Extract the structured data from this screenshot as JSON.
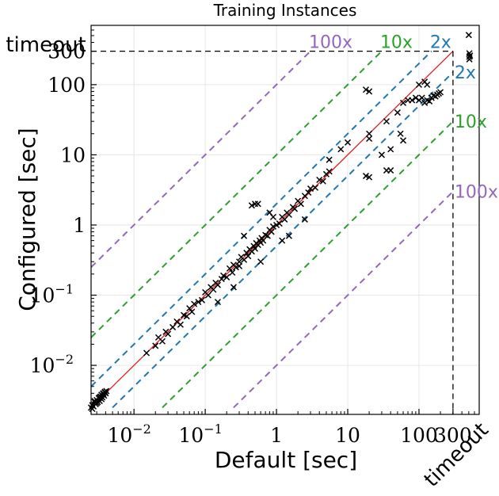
{
  "chart_data": {
    "type": "scatter",
    "title": "Training Instances",
    "xlabel": "Default [sec]",
    "ylabel": "Configured [sec]",
    "scale": "log",
    "xlim": [
      0.0025,
      700
    ],
    "ylim": [
      0.002,
      700
    ],
    "timeout_label": "timeout",
    "timeout_value": 300,
    "x_ticks": [
      {
        "value": 0.01,
        "label": "10",
        "exp": "−2"
      },
      {
        "value": 0.1,
        "label": "10",
        "exp": "−1"
      },
      {
        "value": 1,
        "label": "1",
        "exp": ""
      },
      {
        "value": 10,
        "label": "10",
        "exp": ""
      },
      {
        "value": 100,
        "label": "100",
        "exp": ""
      },
      {
        "value": 300,
        "label": "300",
        "exp": ""
      }
    ],
    "y_ticks": [
      {
        "value": 0.01,
        "label": "10",
        "exp": "−2"
      },
      {
        "value": 0.1,
        "label": "10",
        "exp": "−1"
      },
      {
        "value": 1,
        "label": "1",
        "exp": ""
      },
      {
        "value": 10,
        "label": "10",
        "exp": ""
      },
      {
        "value": 100,
        "label": "100",
        "exp": ""
      },
      {
        "value": 300,
        "label": "300",
        "exp": ""
      }
    ],
    "reference_lines": [
      {
        "factor": 2,
        "label": "2x",
        "color": "#1f77b4"
      },
      {
        "factor": 10,
        "label": "10x",
        "color": "#2ca02c"
      },
      {
        "factor": 100,
        "label": "100x",
        "color": "#9467bd"
      }
    ],
    "diagonal_color": "#e41a1c",
    "grid": true,
    "points": [
      [
        0.0025,
        0.0025
      ],
      [
        0.0026,
        0.0027
      ],
      [
        0.0027,
        0.0026
      ],
      [
        0.0028,
        0.003
      ],
      [
        0.0029,
        0.0028
      ],
      [
        0.003,
        0.0032
      ],
      [
        0.0031,
        0.003
      ],
      [
        0.0032,
        0.0034
      ],
      [
        0.0033,
        0.0031
      ],
      [
        0.0034,
        0.0036
      ],
      [
        0.0035,
        0.0038
      ],
      [
        0.0036,
        0.0035
      ],
      [
        0.0037,
        0.004
      ],
      [
        0.0038,
        0.0037
      ],
      [
        0.0039,
        0.0042
      ],
      [
        0.004,
        0.004
      ],
      [
        0.0026,
        0.0024
      ],
      [
        0.0028,
        0.0031
      ],
      [
        0.003,
        0.0029
      ],
      [
        0.0033,
        0.0035
      ],
      [
        0.0035,
        0.0033
      ],
      [
        0.0037,
        0.0039
      ],
      [
        0.0039,
        0.0041
      ],
      [
        0.0041,
        0.0043
      ],
      [
        0.015,
        0.015
      ],
      [
        0.02,
        0.019
      ],
      [
        0.022,
        0.025
      ],
      [
        0.025,
        0.022
      ],
      [
        0.028,
        0.03
      ],
      [
        0.03,
        0.028
      ],
      [
        0.035,
        0.035
      ],
      [
        0.04,
        0.042
      ],
      [
        0.045,
        0.038
      ],
      [
        0.05,
        0.052
      ],
      [
        0.055,
        0.05
      ],
      [
        0.06,
        0.065
      ],
      [
        0.065,
        0.058
      ],
      [
        0.07,
        0.075
      ],
      [
        0.08,
        0.08
      ],
      [
        0.09,
        0.085
      ],
      [
        0.1,
        0.11
      ],
      [
        0.11,
        0.1
      ],
      [
        0.12,
        0.13
      ],
      [
        0.13,
        0.12
      ],
      [
        0.14,
        0.15
      ],
      [
        0.15,
        0.14
      ],
      [
        0.17,
        0.17
      ],
      [
        0.18,
        0.19
      ],
      [
        0.2,
        0.18
      ],
      [
        0.22,
        0.24
      ],
      [
        0.24,
        0.21
      ],
      [
        0.25,
        0.27
      ],
      [
        0.27,
        0.25
      ],
      [
        0.3,
        0.3
      ],
      [
        0.3,
        0.26
      ],
      [
        0.32,
        0.35
      ],
      [
        0.35,
        0.32
      ],
      [
        0.38,
        0.4
      ],
      [
        0.4,
        0.36
      ],
      [
        0.42,
        0.45
      ],
      [
        0.45,
        0.42
      ],
      [
        0.48,
        0.5
      ],
      [
        0.5,
        0.46
      ],
      [
        0.52,
        0.55
      ],
      [
        0.55,
        0.52
      ],
      [
        0.58,
        0.6
      ],
      [
        0.6,
        0.56
      ],
      [
        0.62,
        0.65
      ],
      [
        0.65,
        0.6
      ],
      [
        0.7,
        0.72
      ],
      [
        0.75,
        0.7
      ],
      [
        0.8,
        0.85
      ],
      [
        0.85,
        0.8
      ],
      [
        0.9,
        0.95
      ],
      [
        1.0,
        1.0
      ],
      [
        1.1,
        1.05
      ],
      [
        1.2,
        1.3
      ],
      [
        1.3,
        1.2
      ],
      [
        1.4,
        1.5
      ],
      [
        1.5,
        1.4
      ],
      [
        1.7,
        1.8
      ],
      [
        1.8,
        1.7
      ],
      [
        2.0,
        2.2
      ],
      [
        2.2,
        2.0
      ],
      [
        2.5,
        2.6
      ],
      [
        2.8,
        2.9
      ],
      [
        3.0,
        3.3
      ],
      [
        3.5,
        3.4
      ],
      [
        4.0,
        4.4
      ],
      [
        4.5,
        4.2
      ],
      [
        5.0,
        5.3
      ],
      [
        5.5,
        5.8
      ],
      [
        0.5,
        2.0
      ],
      [
        0.45,
        1.9
      ],
      [
        0.55,
        2.0
      ],
      [
        0.8,
        1.5
      ],
      [
        0.9,
        1.3
      ],
      [
        0.35,
        0.7
      ],
      [
        1.5,
        0.7
      ],
      [
        0.6,
        0.3
      ],
      [
        0.25,
        0.13
      ],
      [
        0.15,
        0.08
      ],
      [
        1.2,
        0.6
      ],
      [
        2.5,
        1.2
      ],
      [
        5.5,
        8.5
      ],
      [
        8,
        12
      ],
      [
        10,
        15
      ],
      [
        20,
        20
      ],
      [
        20,
        17
      ],
      [
        18,
        5
      ],
      [
        20,
        4.8
      ],
      [
        35,
        6
      ],
      [
        40,
        6
      ],
      [
        30,
        10
      ],
      [
        40,
        12
      ],
      [
        60,
        16
      ],
      [
        55,
        20
      ],
      [
        18,
        85
      ],
      [
        20,
        80
      ],
      [
        35,
        30
      ],
      [
        50,
        40
      ],
      [
        60,
        55
      ],
      [
        70,
        60
      ],
      [
        80,
        60
      ],
      [
        90,
        65
      ],
      [
        100,
        60
      ],
      [
        110,
        65
      ],
      [
        120,
        55
      ],
      [
        130,
        60
      ],
      [
        140,
        58
      ],
      [
        150,
        65
      ],
      [
        160,
        70
      ],
      [
        170,
        68
      ],
      [
        180,
        72
      ],
      [
        190,
        75
      ],
      [
        200,
        78
      ],
      [
        100,
        100
      ],
      [
        120,
        110
      ],
      [
        130,
        100
      ],
      [
        500,
        510
      ],
      [
        510,
        250
      ],
      [
        510,
        280
      ],
      [
        510,
        230
      ],
      [
        520,
        260
      ]
    ]
  }
}
